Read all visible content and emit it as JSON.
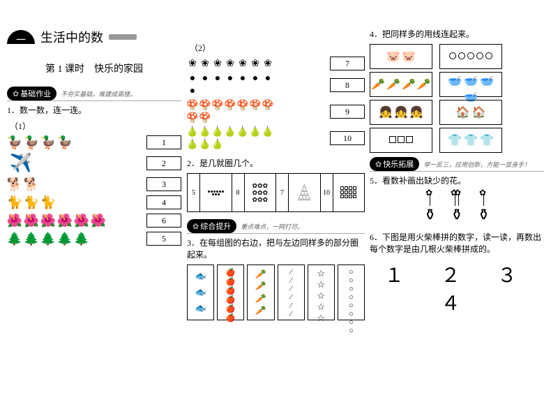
{
  "unit": {
    "num": "一",
    "title": "生活中的数"
  },
  "lesson": {
    "label": "第 1 课时　快乐的家园"
  },
  "badges": {
    "basic": {
      "label": "基础作业",
      "sub": "不夯实基础，难建成高楼。"
    },
    "synth": {
      "label": "综合提升",
      "sub": "重点难点，一网打尽。"
    },
    "ext": {
      "label": "快乐拓展",
      "sub": "举一反三，应用创新，方能一显身手！"
    }
  },
  "q1": {
    "title": "1．数一数，连一连。",
    "sub1": "（1）",
    "sub2": "（2）",
    "set1": [
      {
        "icon": "🦆",
        "count": 4
      },
      {
        "icon": "✈️",
        "count": 1,
        "big": true
      },
      {
        "icon": "🐕",
        "count": 2
      },
      {
        "icon": "🐈",
        "count": 3
      },
      {
        "icon": "🌺",
        "count": 6
      },
      {
        "icon": "🌲",
        "count": 5
      }
    ],
    "nums1": [
      "1",
      "2",
      "3",
      "4",
      "6",
      "5"
    ],
    "set2": [
      {
        "icon": "❀",
        "count": 7
      },
      {
        "icon": "●",
        "count": 8
      },
      {
        "icon": "🍄",
        "count": 9
      },
      {
        "icon": "🍐",
        "count": 10
      }
    ],
    "nums2": [
      "7",
      "8",
      "9",
      "10"
    ]
  },
  "q2": {
    "title": "2．是几就圈几个。",
    "cells": [
      {
        "n": "5",
        "type": "dots",
        "count": 9
      },
      {
        "n": "8",
        "type": "flowers",
        "glyph": "✿",
        "count": 9
      },
      {
        "n": "7",
        "type": "tri"
      },
      {
        "n": "10",
        "type": "squares"
      }
    ]
  },
  "q3": {
    "title": "3．在每组图的右边，把与左边同样多的部分圈起来。",
    "rows": [
      {
        "left": "🐟",
        "lc": 3,
        "right": "🍎",
        "rc": 6
      },
      {
        "left": "🥕",
        "lc": 4,
        "right": "∕",
        "rc": 6
      },
      {
        "left": "☆",
        "lc": 5,
        "right": "○",
        "rc": 8
      }
    ]
  },
  "q4": {
    "title": "4．把同样多的用线连起来。",
    "left": [
      {
        "glyph": "🐷",
        "count": 2
      },
      {
        "glyph": "🥕",
        "count": 4
      },
      {
        "glyph": "👧",
        "count": 3
      },
      {
        "glyph": "□",
        "count": 3
      }
    ],
    "right": [
      {
        "glyph": "circ",
        "count": 5
      },
      {
        "glyph": "🥣",
        "count": 4
      },
      {
        "glyph": "🏠",
        "count": 2
      },
      {
        "glyph": "👕",
        "count": 3
      }
    ]
  },
  "q5": {
    "title": "5．看数补画出缺少的花。",
    "pots": [
      {
        "flowers": 1
      },
      {
        "flowers": 2
      },
      {
        "flowers": 1
      }
    ]
  },
  "q6": {
    "title": "6．下图是用火柴棒拼的数字，读一读，再数出每个数字是由几根火柴棒拼成的。",
    "digits": "１ ２ ３ ４"
  }
}
